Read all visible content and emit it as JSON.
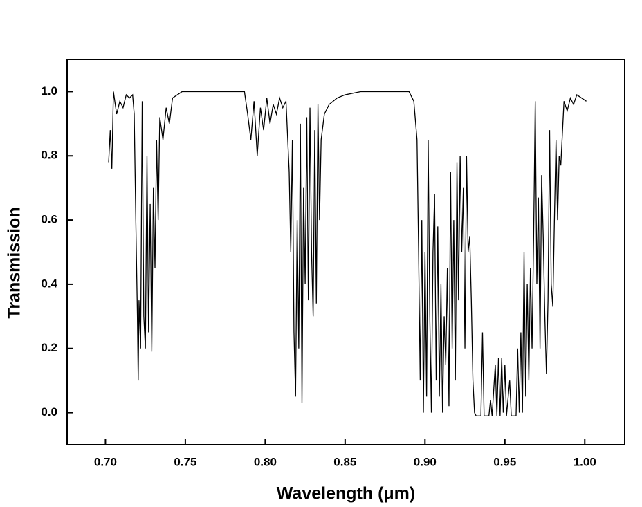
{
  "chart_data": {
    "type": "line",
    "x_label": "Wavelength (μm)",
    "y_label": "Transmission",
    "xlim": [
      0.676,
      1.025
    ],
    "ylim": [
      -0.1,
      1.1
    ],
    "xticks": [
      {
        "value": 0.7,
        "label": "0.70"
      },
      {
        "value": 0.75,
        "label": "0.75"
      },
      {
        "value": 0.8,
        "label": "0.80"
      },
      {
        "value": 0.85,
        "label": "0.85"
      },
      {
        "value": 0.9,
        "label": "0.90"
      },
      {
        "value": 0.95,
        "label": "0.95"
      },
      {
        "value": 1.0,
        "label": "1.00"
      }
    ],
    "yticks": [
      {
        "value": 0.0,
        "label": "0.0"
      },
      {
        "value": 0.2,
        "label": "0.2"
      },
      {
        "value": 0.4,
        "label": "0.4"
      },
      {
        "value": 0.6,
        "label": "0.6"
      },
      {
        "value": 0.8,
        "label": "0.8"
      },
      {
        "value": 1.0,
        "label": "1.0"
      }
    ],
    "grid": false,
    "series": [
      {
        "color": "#000000",
        "x": [
          0.702,
          0.703,
          0.704,
          0.705,
          0.707,
          0.709,
          0.711,
          0.713,
          0.715,
          0.717,
          0.718,
          0.719,
          0.72,
          0.7205,
          0.721,
          0.722,
          0.723,
          0.724,
          0.725,
          0.726,
          0.727,
          0.728,
          0.729,
          0.73,
          0.731,
          0.732,
          0.733,
          0.734,
          0.736,
          0.738,
          0.74,
          0.742,
          0.745,
          0.748,
          0.787,
          0.789,
          0.791,
          0.793,
          0.795,
          0.797,
          0.799,
          0.801,
          0.803,
          0.805,
          0.807,
          0.809,
          0.811,
          0.813,
          0.815,
          0.816,
          0.817,
          0.818,
          0.819,
          0.82,
          0.821,
          0.822,
          0.823,
          0.824,
          0.825,
          0.826,
          0.827,
          0.828,
          0.829,
          0.83,
          0.831,
          0.832,
          0.833,
          0.834,
          0.835,
          0.837,
          0.84,
          0.845,
          0.85,
          0.86,
          0.89,
          0.893,
          0.895,
          0.896,
          0.897,
          0.898,
          0.899,
          0.9,
          0.901,
          0.902,
          0.903,
          0.904,
          0.905,
          0.906,
          0.907,
          0.908,
          0.909,
          0.91,
          0.911,
          0.912,
          0.913,
          0.914,
          0.915,
          0.916,
          0.917,
          0.918,
          0.919,
          0.92,
          0.921,
          0.922,
          0.923,
          0.924,
          0.925,
          0.926,
          0.927,
          0.928,
          0.929,
          0.93,
          0.931,
          0.932,
          0.935,
          0.936,
          0.937,
          0.94,
          0.941,
          0.942,
          0.944,
          0.945,
          0.946,
          0.947,
          0.948,
          0.949,
          0.95,
          0.951,
          0.953,
          0.954,
          0.957,
          0.958,
          0.959,
          0.96,
          0.961,
          0.962,
          0.963,
          0.964,
          0.965,
          0.966,
          0.967,
          0.968,
          0.969,
          0.97,
          0.971,
          0.972,
          0.973,
          0.974,
          0.975,
          0.976,
          0.977,
          0.978,
          0.979,
          0.98,
          0.981,
          0.982,
          0.983,
          0.984,
          0.985,
          0.987,
          0.989,
          0.991,
          0.993,
          0.995,
          0.998,
          1.001
        ],
        "values": [
          0.78,
          0.88,
          0.76,
          1.0,
          0.93,
          0.97,
          0.95,
          0.99,
          0.98,
          0.99,
          0.93,
          0.6,
          0.3,
          0.1,
          0.35,
          0.2,
          0.97,
          0.3,
          0.2,
          0.8,
          0.25,
          0.65,
          0.19,
          0.7,
          0.45,
          0.85,
          0.6,
          0.92,
          0.85,
          0.95,
          0.9,
          0.98,
          0.99,
          1.0,
          1.0,
          0.93,
          0.85,
          0.97,
          0.8,
          0.95,
          0.88,
          0.98,
          0.9,
          0.96,
          0.93,
          0.98,
          0.95,
          0.97,
          0.75,
          0.5,
          0.85,
          0.25,
          0.05,
          0.6,
          0.2,
          0.9,
          0.03,
          0.7,
          0.4,
          0.92,
          0.35,
          0.95,
          0.5,
          0.3,
          0.88,
          0.34,
          0.96,
          0.6,
          0.85,
          0.93,
          0.96,
          0.98,
          0.99,
          1.0,
          1.0,
          0.97,
          0.85,
          0.5,
          0.1,
          0.6,
          0.0,
          0.5,
          0.05,
          0.85,
          0.3,
          0.0,
          0.5,
          0.68,
          0.1,
          0.58,
          0.05,
          0.4,
          0.0,
          0.3,
          0.15,
          0.45,
          0.02,
          0.75,
          0.2,
          0.6,
          0.1,
          0.78,
          0.35,
          0.8,
          0.5,
          0.7,
          0.2,
          0.8,
          0.5,
          0.55,
          0.35,
          0.1,
          0.0,
          -0.01,
          -0.01,
          0.25,
          -0.01,
          -0.01,
          0.04,
          -0.01,
          0.15,
          -0.01,
          0.17,
          -0.01,
          0.17,
          0.0,
          0.15,
          -0.01,
          0.1,
          -0.01,
          -0.01,
          0.2,
          0.0,
          0.25,
          0.0,
          0.5,
          0.05,
          0.4,
          0.1,
          0.45,
          0.2,
          0.55,
          0.97,
          0.4,
          0.67,
          0.2,
          0.74,
          0.55,
          0.3,
          0.12,
          0.35,
          0.88,
          0.4,
          0.33,
          0.6,
          0.85,
          0.6,
          0.8,
          0.77,
          0.97,
          0.94,
          0.98,
          0.96,
          0.99,
          0.98,
          0.97
        ]
      }
    ]
  }
}
